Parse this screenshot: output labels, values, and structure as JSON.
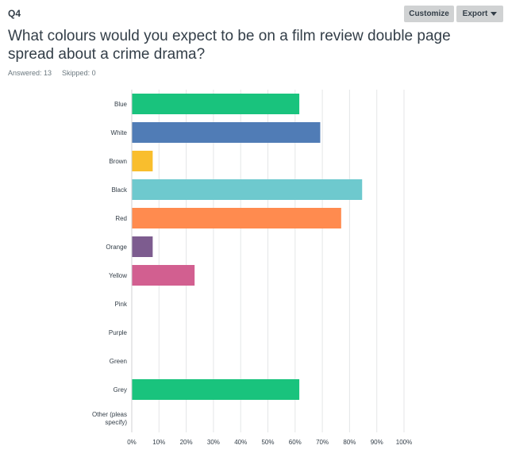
{
  "question": {
    "number": "Q4",
    "title": "What colours would you expect to be on a film review double page spread about a crime drama?",
    "answered_label": "Answered: 13",
    "skipped_label": "Skipped: 0"
  },
  "toolbar": {
    "customize_label": "Customize",
    "export_label": "Export"
  },
  "chart_data": {
    "type": "bar",
    "orientation": "horizontal",
    "categories": [
      "Blue",
      "White",
      "Brown",
      "Black",
      "Red",
      "Orange",
      "Yellow",
      "Pink",
      "Purple",
      "Green",
      "Grey",
      "Other (please specify)"
    ],
    "values": [
      61.54,
      69.23,
      7.69,
      84.62,
      76.92,
      7.69,
      23.08,
      0,
      0,
      0,
      61.54,
      0
    ],
    "colors": [
      "#19c37d",
      "#507cb6",
      "#f9be2d",
      "#6ec9ce",
      "#ff8b4f",
      "#7d5c8f",
      "#d25f90",
      "#19c37d",
      "#507cb6",
      "#f9be2d",
      "#19c37d",
      "#6ec9ce"
    ],
    "xlim": [
      0,
      100
    ],
    "xticks": [
      "0%",
      "10%",
      "20%",
      "30%",
      "40%",
      "50%",
      "60%",
      "70%",
      "80%",
      "90%",
      "100%"
    ],
    "grid": true
  }
}
